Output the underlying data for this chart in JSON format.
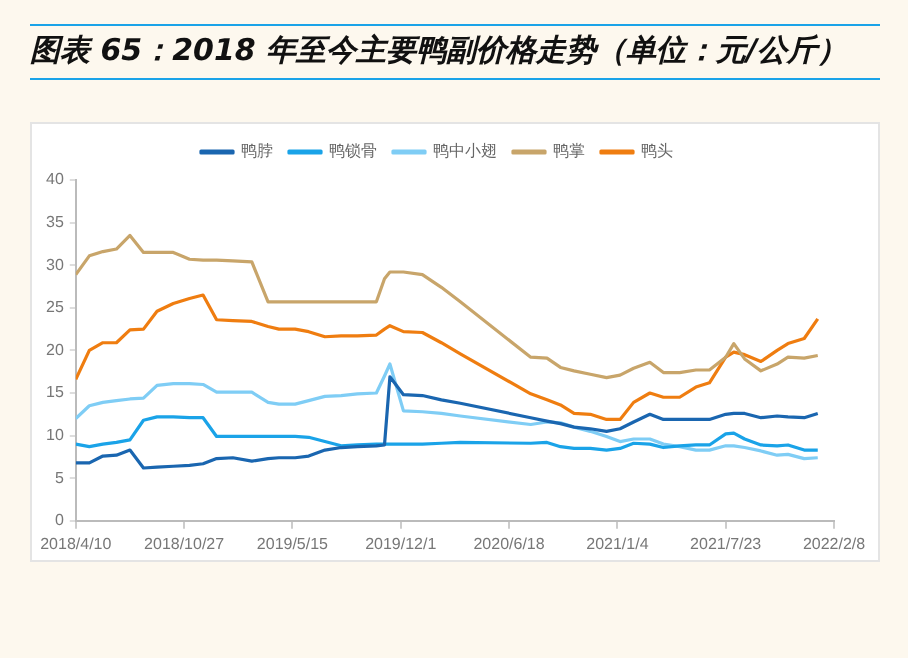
{
  "chart_data": {
    "type": "line",
    "title": "图表 65：2018 年至今主要鸭副价格走势（单位：元/公斤）",
    "x": [
      "2018-04-10",
      "2018-05-05",
      "2018-05-30",
      "2018-06-24",
      "2018-07-19",
      "2018-08-13",
      "2018-09-07",
      "2018-10-07",
      "2018-11-06",
      "2018-12-01",
      "2018-12-26",
      "2019-01-25",
      "2019-03-01",
      "2019-03-31",
      "2019-04-20",
      "2019-05-20",
      "2019-06-14",
      "2019-07-14",
      "2019-08-13",
      "2019-09-12",
      "2019-10-17",
      "2019-11-01",
      "2019-11-11",
      "2019-12-06",
      "2020-01-10",
      "2020-02-14",
      "2020-03-20",
      "2020-07-28",
      "2020-08-27",
      "2020-09-21",
      "2020-10-16",
      "2020-11-15",
      "2020-12-15",
      "2021-01-09",
      "2021-02-03",
      "2021-03-05",
      "2021-03-30",
      "2021-04-29",
      "2021-05-29",
      "2021-06-23",
      "2021-07-23",
      "2021-08-07",
      "2021-08-27",
      "2021-09-26",
      "2021-10-26",
      "2021-11-15",
      "2021-12-15",
      "2022-01-09"
    ],
    "series": [
      {
        "name": "鸭脖",
        "color": "#1a66b0",
        "values": [
          6.8,
          6.8,
          7.6,
          7.7,
          8.3,
          6.2,
          6.3,
          6.4,
          6.5,
          6.7,
          7.3,
          7.4,
          7.0,
          7.3,
          7.4,
          7.4,
          7.6,
          8.3,
          8.6,
          8.7,
          8.8,
          8.9,
          16.9,
          14.8,
          14.7,
          14.2,
          13.8,
          12.1,
          11.7,
          11.4,
          11.0,
          10.8,
          10.5,
          10.8,
          11.6,
          12.5,
          11.9,
          11.9,
          11.9,
          11.9,
          12.5,
          12.6,
          12.6,
          12.1,
          12.3,
          12.2,
          12.1,
          12.6
        ]
      },
      {
        "name": "鸭锁骨",
        "color": "#1aa3e8",
        "values": [
          9.0,
          8.7,
          9.0,
          9.2,
          9.5,
          11.8,
          12.2,
          12.2,
          12.1,
          12.1,
          9.9,
          9.9,
          9.9,
          9.9,
          9.9,
          9.9,
          9.8,
          9.3,
          8.8,
          8.9,
          9.0,
          9.0,
          9.0,
          9.0,
          9.0,
          9.1,
          9.2,
          9.1,
          9.2,
          8.7,
          8.5,
          8.5,
          8.3,
          8.5,
          9.1,
          9.0,
          8.6,
          8.8,
          8.9,
          8.9,
          10.2,
          10.3,
          9.6,
          8.9,
          8.8,
          8.9,
          8.3,
          8.3
        ]
      },
      {
        "name": "鸭中小翅",
        "color": "#7fcdf5",
        "values": [
          12.0,
          13.5,
          13.9,
          14.1,
          14.3,
          14.4,
          15.9,
          16.1,
          16.1,
          16.0,
          15.1,
          15.1,
          15.1,
          13.9,
          13.7,
          13.7,
          14.1,
          14.6,
          14.7,
          14.9,
          15.0,
          17.0,
          18.4,
          12.9,
          12.8,
          12.6,
          12.3,
          11.3,
          11.6,
          11.5,
          11.0,
          10.5,
          9.9,
          9.3,
          9.6,
          9.6,
          9.0,
          8.7,
          8.3,
          8.3,
          8.8,
          8.8,
          8.6,
          8.2,
          7.7,
          7.8,
          7.3,
          7.4
        ]
      },
      {
        "name": "鸭掌",
        "color": "#c8a56a",
        "values": [
          28.9,
          31.1,
          31.6,
          31.9,
          33.5,
          31.5,
          31.5,
          31.5,
          30.7,
          30.6,
          30.6,
          30.5,
          30.4,
          25.7,
          25.7,
          25.7,
          25.7,
          25.7,
          25.7,
          25.7,
          25.7,
          28.4,
          29.2,
          29.2,
          28.9,
          27.4,
          25.7,
          19.2,
          19.1,
          18.0,
          17.6,
          17.2,
          16.8,
          17.1,
          17.9,
          18.6,
          17.4,
          17.4,
          17.7,
          17.7,
          19.2,
          20.8,
          19.0,
          17.6,
          18.4,
          19.2,
          19.1,
          19.4
        ]
      },
      {
        "name": "鸭头",
        "color": "#ef7d10",
        "values": [
          16.6,
          20.0,
          20.9,
          20.9,
          22.4,
          22.5,
          24.6,
          25.5,
          26.1,
          26.5,
          23.6,
          23.5,
          23.4,
          22.8,
          22.5,
          22.5,
          22.2,
          21.6,
          21.7,
          21.7,
          21.8,
          22.5,
          22.9,
          22.2,
          22.1,
          20.9,
          19.6,
          14.9,
          14.2,
          13.6,
          12.6,
          12.5,
          11.9,
          11.9,
          13.9,
          15.0,
          14.5,
          14.5,
          15.7,
          16.2,
          19.2,
          19.8,
          19.5,
          18.7,
          20.0,
          20.8,
          21.4,
          23.7
        ]
      }
    ],
    "xlim": [
      "2018-04-10",
      "2022-02-08"
    ],
    "xticks": [
      {
        "value": "2018-04-10",
        "label": "2018/4/10"
      },
      {
        "value": "2018-10-27",
        "label": "2018/10/27"
      },
      {
        "value": "2019-05-15",
        "label": "2019/5/15"
      },
      {
        "value": "2019-12-01",
        "label": "2019/12/1"
      },
      {
        "value": "2020-06-18",
        "label": "2020/6/18"
      },
      {
        "value": "2021-01-04",
        "label": "2021/1/4"
      },
      {
        "value": "2021-07-23",
        "label": "2021/7/23"
      },
      {
        "value": "2022-02-08",
        "label": "2022/2/8"
      }
    ],
    "ylim": [
      0,
      40
    ],
    "yticks": [
      0,
      5,
      10,
      15,
      20,
      25,
      30,
      35,
      40
    ],
    "legend": "top",
    "marker": "none",
    "line_style": "solid"
  }
}
